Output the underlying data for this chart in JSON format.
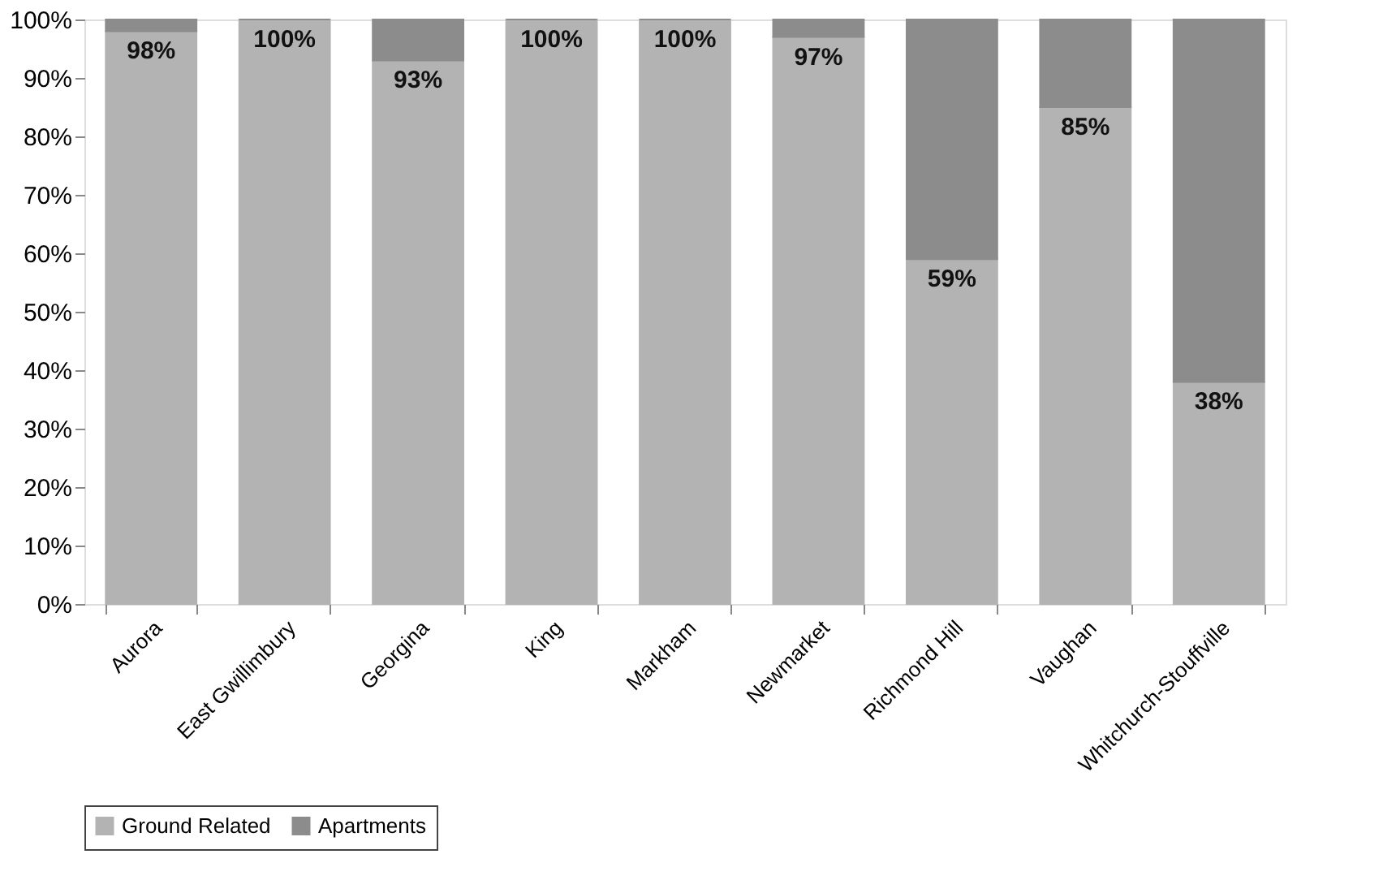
{
  "chart_data": {
    "type": "bar",
    "stacked": true,
    "categories": [
      "Aurora",
      "East Gwillimbury",
      "Georgina",
      "King",
      "Markham",
      "Newmarket",
      "Richmond Hill",
      "Vaughan",
      "Whitchurch-Stouffville"
    ],
    "series": [
      {
        "name": "Ground Related",
        "color": "#b3b3b3",
        "values": [
          98,
          100,
          93,
          100,
          100,
          97,
          59,
          85,
          38
        ],
        "value_labels": [
          "98%",
          "100%",
          "93%",
          "100%",
          "100%",
          "97%",
          "59%",
          "85%",
          "38%"
        ]
      },
      {
        "name": "Apartments",
        "color": "#8c8c8c",
        "values": [
          2,
          0,
          7,
          0,
          0,
          3,
          41,
          15,
          62
        ]
      }
    ],
    "ylim": [
      0,
      100
    ],
    "yticks": [
      {
        "value": 0,
        "label": "0%"
      },
      {
        "value": 10,
        "label": "10%"
      },
      {
        "value": 20,
        "label": "20%"
      },
      {
        "value": 30,
        "label": "30%"
      },
      {
        "value": 40,
        "label": "40%"
      },
      {
        "value": 50,
        "label": "50%"
      },
      {
        "value": 60,
        "label": "60%"
      },
      {
        "value": 70,
        "label": "70%"
      },
      {
        "value": 80,
        "label": "80%"
      },
      {
        "value": 90,
        "label": "90%"
      },
      {
        "value": 100,
        "label": "100%"
      }
    ],
    "grid": false,
    "legend": "bottom"
  }
}
